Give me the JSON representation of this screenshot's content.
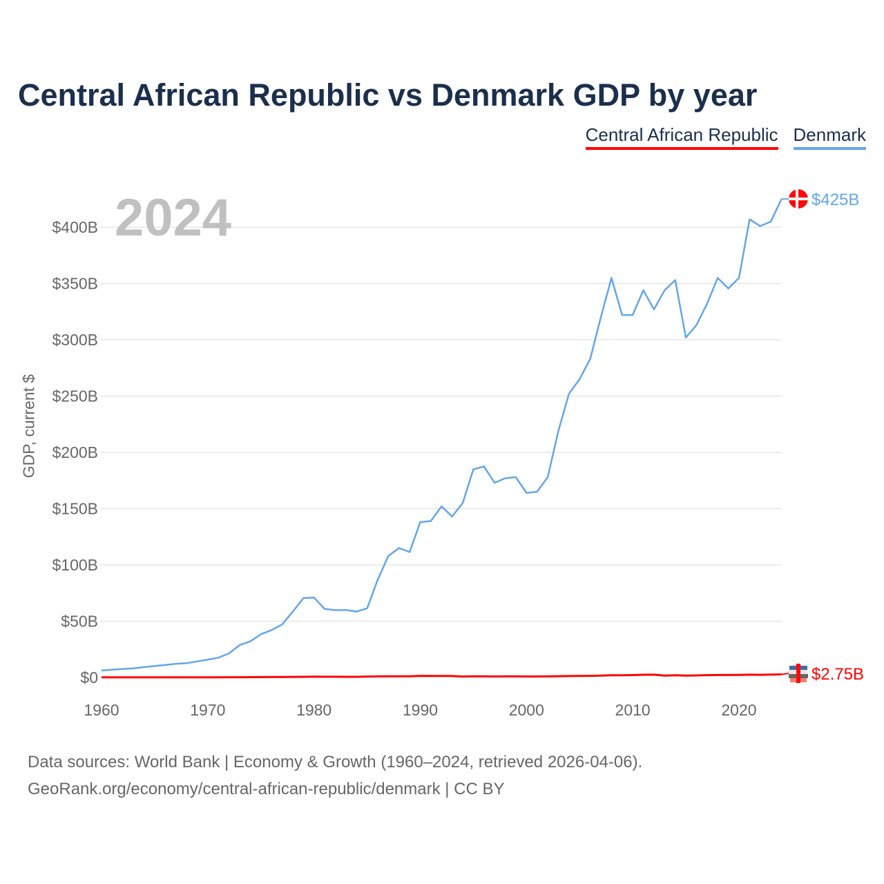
{
  "title": "Central African Republic vs Denmark GDP by year",
  "legend": [
    "Central African Republic",
    "Denmark"
  ],
  "year_display": "2024",
  "footer": {
    "line1": "Data sources: World Bank | Economy & Growth (1960–2024, retrieved 2026-04-06).",
    "line2": "GeoRank.org/economy/central-african-republic/denmark | CC BY"
  },
  "chart_data": {
    "type": "line",
    "title": "Central African Republic vs Denmark GDP by year",
    "xlabel": "",
    "ylabel": "GDP, current $",
    "xlim": [
      1960,
      2024
    ],
    "ylim": [
      0,
      400
    ],
    "x_ticks": [
      1960,
      1970,
      1980,
      1990,
      2000,
      2010,
      2020
    ],
    "x_tick_labels": [
      "1960",
      "1970",
      "1980",
      "1990",
      "2000",
      "2010",
      "2020"
    ],
    "y_ticks": [
      0,
      50,
      100,
      150,
      200,
      250,
      300,
      350,
      400
    ],
    "y_tick_labels": [
      "$0",
      "$50B",
      "$100B",
      "$150B",
      "$200B",
      "$250B",
      "$300B",
      "$350B",
      "$400B"
    ],
    "grid": true,
    "legend_position": "top-right",
    "x": [
      1960,
      1961,
      1962,
      1963,
      1964,
      1965,
      1966,
      1967,
      1968,
      1969,
      1970,
      1971,
      1972,
      1973,
      1974,
      1975,
      1976,
      1977,
      1978,
      1979,
      1980,
      1981,
      1982,
      1983,
      1984,
      1985,
      1986,
      1987,
      1988,
      1989,
      1990,
      1991,
      1992,
      1993,
      1994,
      1995,
      1996,
      1997,
      1998,
      1999,
      2000,
      2001,
      2002,
      2003,
      2004,
      2005,
      2006,
      2007,
      2008,
      2009,
      2010,
      2011,
      2012,
      2013,
      2014,
      2015,
      2016,
      2017,
      2018,
      2019,
      2020,
      2021,
      2022,
      2023,
      2024
    ],
    "series": [
      {
        "name": "Central African Republic",
        "color": "#ff0000",
        "end_label": "$2.75B",
        "values": [
          0.11,
          0.11,
          0.12,
          0.12,
          0.13,
          0.14,
          0.15,
          0.16,
          0.17,
          0.19,
          0.19,
          0.21,
          0.23,
          0.27,
          0.29,
          0.35,
          0.41,
          0.46,
          0.54,
          0.64,
          0.8,
          0.7,
          0.66,
          0.6,
          0.6,
          0.87,
          0.98,
          1.03,
          1.13,
          1.11,
          1.5,
          1.42,
          1.4,
          1.27,
          0.86,
          1.12,
          1.01,
          0.94,
          0.97,
          0.97,
          0.91,
          0.93,
          0.99,
          1.14,
          1.27,
          1.35,
          1.47,
          1.7,
          1.98,
          1.98,
          2.14,
          2.44,
          2.5,
          1.69,
          1.95,
          1.7,
          1.82,
          2.07,
          2.22,
          2.22,
          2.32,
          2.52,
          2.4,
          2.56,
          2.75
        ]
      },
      {
        "name": "Denmark",
        "color": "#62a6ea",
        "end_label": "$425B",
        "values": [
          6.2,
          6.9,
          7.6,
          8.1,
          9.2,
          10.2,
          11.1,
          12.2,
          12.7,
          14.3,
          15.9,
          17.6,
          21.4,
          28.8,
          32.1,
          38.4,
          42.1,
          47.1,
          58.5,
          70.5,
          71.0,
          61.0,
          59.8,
          60.0,
          58.5,
          61.5,
          87.0,
          108.0,
          115.0,
          111.5,
          138.0,
          139.0,
          152.0,
          143.0,
          155.0,
          185.0,
          187.5,
          173.0,
          177.0,
          178.0,
          164.0,
          165.0,
          178.0,
          219.0,
          252.0,
          265.0,
          283.0,
          320.0,
          355.0,
          322.0,
          322.0,
          344.0,
          327.0,
          344.0,
          353.0,
          302.0,
          313.0,
          332.0,
          355.0,
          345.5,
          355.0,
          407.0,
          401.0,
          405.0,
          425.0
        ]
      }
    ]
  }
}
